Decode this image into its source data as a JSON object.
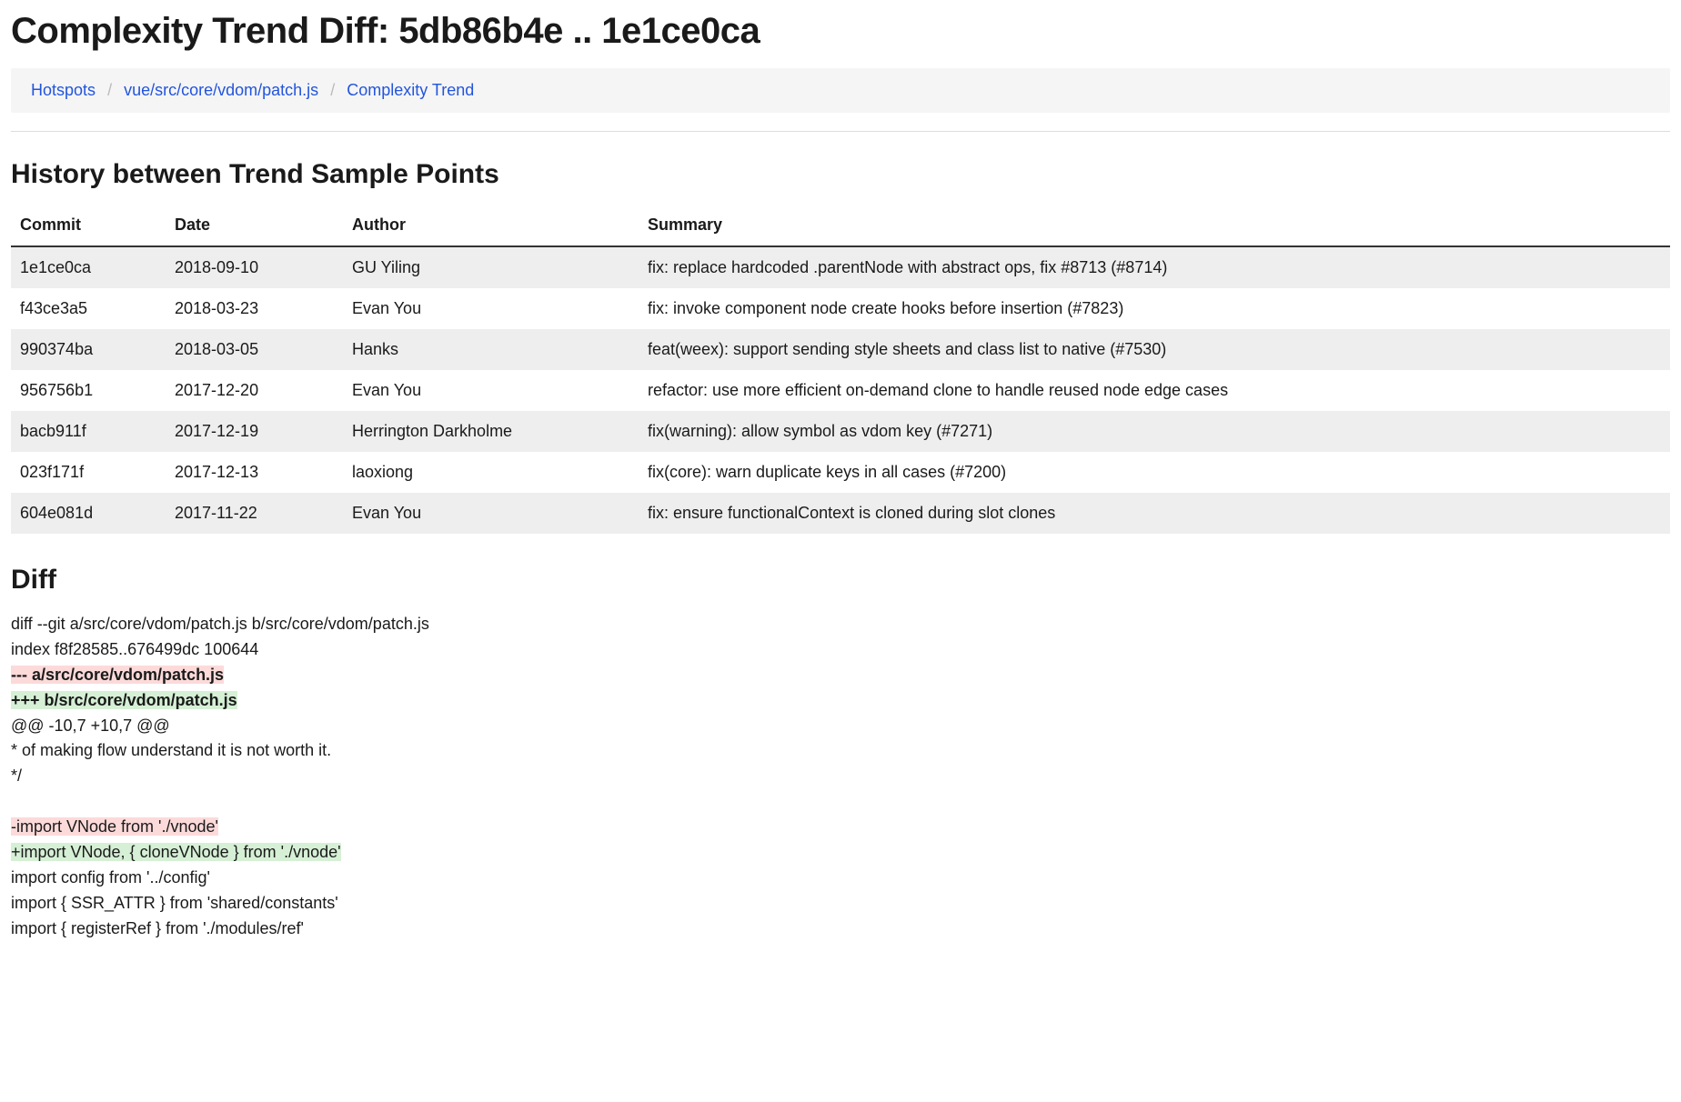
{
  "page_title": "Complexity Trend Diff: 5db86b4e .. 1e1ce0ca",
  "breadcrumb": {
    "items": [
      "Hotspots",
      "vue/src/core/vdom/patch.js",
      "Complexity Trend"
    ]
  },
  "history": {
    "heading": "History between Trend Sample Points",
    "columns": [
      "Commit",
      "Date",
      "Author",
      "Summary"
    ],
    "rows": [
      {
        "commit": "1e1ce0ca",
        "date": "2018-09-10",
        "author": "GU Yiling",
        "summary": "fix: replace hardcoded .parentNode with abstract ops, fix #8713 (#8714)"
      },
      {
        "commit": "f43ce3a5",
        "date": "2018-03-23",
        "author": "Evan You",
        "summary": "fix: invoke component node create hooks before insertion (#7823)"
      },
      {
        "commit": "990374ba",
        "date": "2018-03-05",
        "author": "Hanks",
        "summary": "feat(weex): support sending style sheets and class list to native (#7530)"
      },
      {
        "commit": "956756b1",
        "date": "2017-12-20",
        "author": "Evan You",
        "summary": "refactor: use more efficient on-demand clone to handle reused node edge cases"
      },
      {
        "commit": "bacb911f",
        "date": "2017-12-19",
        "author": "Herrington Darkholme",
        "summary": "fix(warning): allow symbol as vdom key (#7271)"
      },
      {
        "commit": "023f171f",
        "date": "2017-12-13",
        "author": "laoxiong",
        "summary": "fix(core): warn duplicate keys in all cases (#7200)"
      },
      {
        "commit": "604e081d",
        "date": "2017-11-22",
        "author": "Evan You",
        "summary": "fix: ensure functionalContext is cloned during slot clones"
      }
    ]
  },
  "diff": {
    "heading": "Diff",
    "lines": [
      {
        "text": "diff --git a/src/core/vdom/patch.js b/src/core/vdom/patch.js",
        "kind": "ctx"
      },
      {
        "text": "index f8f28585..676499dc 100644",
        "kind": "ctx"
      },
      {
        "text": "--- a/src/core/vdom/patch.js",
        "kind": "del-bold"
      },
      {
        "text": "+++ b/src/core/vdom/patch.js",
        "kind": "add-bold"
      },
      {
        "text": "@@ -10,7 +10,7 @@",
        "kind": "hunk"
      },
      {
        "text": "* of making flow understand it is not worth it.",
        "kind": "ctx"
      },
      {
        "text": "*/",
        "kind": "ctx"
      },
      {
        "text": "",
        "kind": "ctx"
      },
      {
        "text": "-import VNode from './vnode'",
        "kind": "del"
      },
      {
        "text": "+import VNode, { cloneVNode } from './vnode'",
        "kind": "add"
      },
      {
        "text": "import config from '../config'",
        "kind": "ctx"
      },
      {
        "text": "import { SSR_ATTR } from 'shared/constants'",
        "kind": "ctx"
      },
      {
        "text": "import { registerRef } from './modules/ref'",
        "kind": "ctx"
      }
    ]
  }
}
